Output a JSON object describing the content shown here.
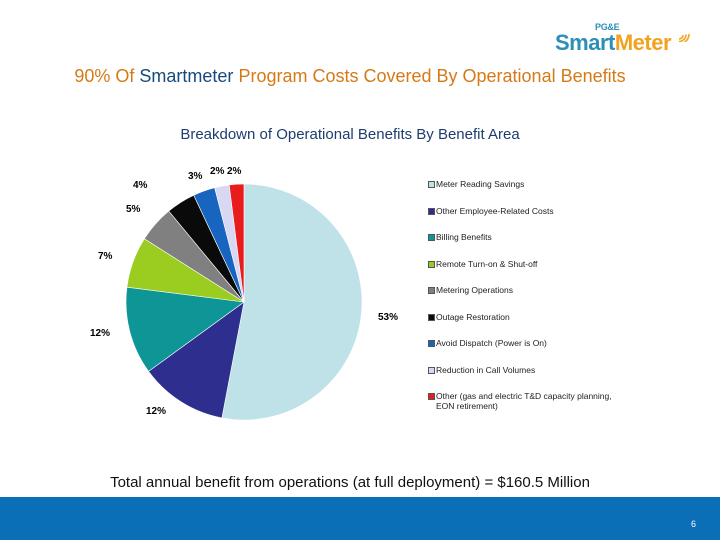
{
  "header": {
    "logo_brand": "PG&E",
    "logo_smart": "Smart",
    "logo_meter": "Meter",
    "title_part1": "90% Of ",
    "title_part2": "Smartmeter",
    "title_part3": " Program Costs Covered By Operational Benefits"
  },
  "chart_data": {
    "type": "pie",
    "title": "Breakdown of Operational Benefits By Benefit Area",
    "slices": [
      {
        "label": "Meter Reading Savings",
        "value": 53,
        "pct_label": "53%",
        "color": "#bfe2e8"
      },
      {
        "label": "Other Employee-Related Costs",
        "value": 12,
        "pct_label": "12%",
        "color": "#2e2e8e"
      },
      {
        "label": "Billing Benefits",
        "value": 12,
        "pct_label": "12%",
        "color": "#0e9596"
      },
      {
        "label": "Remote Turn-on & Shut-off",
        "value": 7,
        "pct_label": "7%",
        "color": "#9acd20"
      },
      {
        "label": "Metering Operations",
        "value": 5,
        "pct_label": "5%",
        "color": "#808080"
      },
      {
        "label": "Outage Restoration",
        "value": 4,
        "pct_label": "4%",
        "color": "#0a0a0a"
      },
      {
        "label": "Avoid Dispatch (Power is On)",
        "value": 3,
        "pct_label": "3%",
        "color": "#1865c0"
      },
      {
        "label": "Reduction in Call Volumes",
        "value": 2,
        "pct_label": "2%",
        "color": "#d8d8f5"
      },
      {
        "label": "Other (gas and electric T&D capacity planning, EON retirement)",
        "value": 2,
        "pct_label": "2%",
        "color": "#e81c1c"
      }
    ],
    "legend_position": "right"
  },
  "footer": {
    "total_text": "Total annual benefit from operations (at full deployment) = $160.5 Million",
    "page_number": "6",
    "bar_color": "#0a6fb6"
  }
}
